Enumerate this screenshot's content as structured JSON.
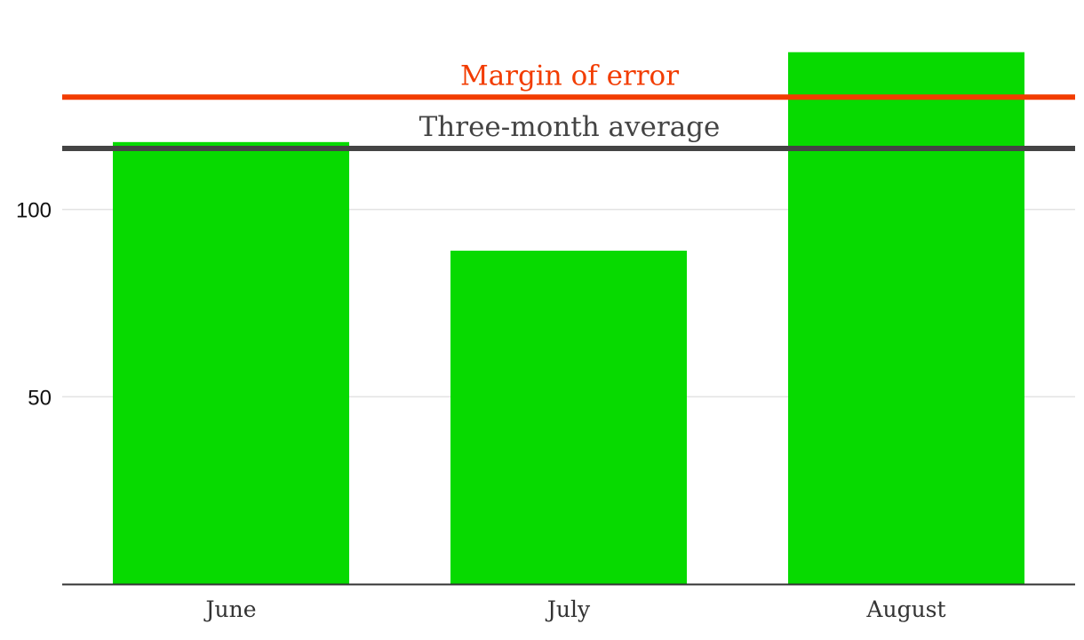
{
  "chart_data": {
    "type": "bar",
    "categories": [
      "June",
      "July",
      "August"
    ],
    "values": [
      118,
      89,
      142
    ],
    "ylim": [
      0,
      150
    ],
    "yticks": [
      50,
      100
    ],
    "grid": true,
    "bar_color": "#07da00",
    "reference_lines": [
      {
        "label": "Margin of error",
        "value": 130,
        "color": "#f23c00"
      },
      {
        "label": "Three-month average",
        "value": 116.3,
        "color": "#444444"
      }
    ]
  }
}
